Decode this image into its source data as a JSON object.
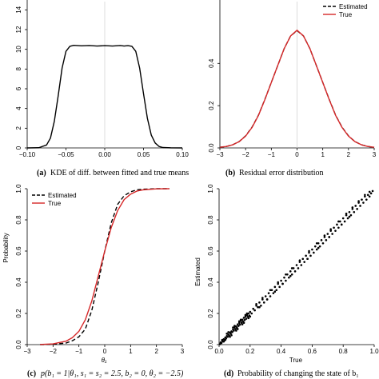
{
  "chart_data": [
    {
      "type": "line",
      "panel": "a",
      "caption_label": "(a)",
      "caption": "KDE of diff. between fitted and true means",
      "xlabel": "",
      "ylabel": "",
      "xlim": [
        -0.1,
        0.1
      ],
      "ylim": [
        0,
        15
      ],
      "xticks": [
        "−0.10",
        "−0.05",
        "0.00",
        "0.05",
        "0.10"
      ],
      "xtick_values": [
        -0.1,
        -0.05,
        0.0,
        0.05,
        0.1
      ],
      "yticks": [
        "0",
        "2",
        "4",
        "6",
        "8",
        "10",
        "12",
        "14"
      ],
      "ytick_values": [
        0,
        2,
        4,
        6,
        8,
        10,
        12,
        14
      ],
      "vline_x": 0.0,
      "series": [
        {
          "color": "#000000",
          "dash": "solid",
          "x": [
            -0.1,
            -0.085,
            -0.075,
            -0.07,
            -0.065,
            -0.06,
            -0.055,
            -0.05,
            -0.045,
            -0.04,
            -0.03,
            -0.02,
            -0.01,
            0.0,
            0.01,
            0.02,
            0.025,
            0.03,
            0.035,
            0.04,
            0.045,
            0.05,
            0.055,
            0.06,
            0.065,
            0.07,
            0.075,
            0.085,
            0.1
          ],
          "y": [
            0,
            0.02,
            0.3,
            1.0,
            2.7,
            5.3,
            8.1,
            9.8,
            10.3,
            10.4,
            10.35,
            10.38,
            10.33,
            10.37,
            10.33,
            10.38,
            10.33,
            10.37,
            10.3,
            9.8,
            8.1,
            5.5,
            3.0,
            1.3,
            0.5,
            0.15,
            0.04,
            0.01,
            0
          ]
        }
      ]
    },
    {
      "type": "line",
      "panel": "b",
      "caption_label": "(b)",
      "caption": "Residual error distribution",
      "xlabel": "",
      "ylabel": "",
      "xlim": [
        -3,
        3
      ],
      "ylim": [
        0,
        0.7
      ],
      "xticks": [
        "−3",
        "−2",
        "−1",
        "0",
        "1",
        "2",
        "3"
      ],
      "xtick_values": [
        -3,
        -2,
        -1,
        0,
        1,
        2,
        3
      ],
      "yticks": [
        "0.0",
        "0.2",
        "0.4"
      ],
      "ytick_values": [
        0.0,
        0.2,
        0.4
      ],
      "vline_x": 0,
      "legend": {
        "position": "top-right",
        "entries": [
          "Estimated",
          "True"
        ]
      },
      "series": [
        {
          "name": "Estimated",
          "color": "#000000",
          "dash": "dashed",
          "x": [
            -3,
            -2.75,
            -2.5,
            -2.25,
            -2,
            -1.75,
            -1.5,
            -1.25,
            -1,
            -0.75,
            -0.5,
            -0.25,
            0,
            0.25,
            0.5,
            0.75,
            1,
            1.25,
            1.5,
            1.75,
            2,
            2.25,
            2.5,
            2.75,
            3
          ],
          "y": [
            0.003,
            0.007,
            0.015,
            0.03,
            0.057,
            0.098,
            0.155,
            0.23,
            0.31,
            0.39,
            0.47,
            0.53,
            0.555,
            0.53,
            0.47,
            0.39,
            0.31,
            0.23,
            0.155,
            0.098,
            0.057,
            0.03,
            0.015,
            0.007,
            0.003
          ]
        },
        {
          "name": "True",
          "color": "#d62728",
          "dash": "solid",
          "x": [
            -3,
            -2.75,
            -2.5,
            -2.25,
            -2,
            -1.75,
            -1.5,
            -1.25,
            -1,
            -0.75,
            -0.5,
            -0.25,
            0,
            0.25,
            0.5,
            0.75,
            1,
            1.25,
            1.5,
            1.75,
            2,
            2.25,
            2.5,
            2.75,
            3
          ],
          "y": [
            0.003,
            0.007,
            0.015,
            0.03,
            0.056,
            0.097,
            0.154,
            0.229,
            0.31,
            0.39,
            0.47,
            0.53,
            0.557,
            0.53,
            0.47,
            0.39,
            0.31,
            0.229,
            0.154,
            0.097,
            0.056,
            0.03,
            0.015,
            0.007,
            0.003
          ]
        }
      ]
    },
    {
      "type": "line",
      "panel": "c",
      "caption_label": "(c)",
      "caption": "p(b₁ = 1|θ₁, s₁ = s₂ = 2.5, b₂ = 0, θ₂ = −2.5)",
      "xlabel": "θ₁",
      "ylabel": "Probability",
      "xlim": [
        -3,
        3
      ],
      "ylim": [
        0,
        1
      ],
      "xticks": [
        "−3",
        "−2",
        "−1",
        "0",
        "1",
        "2",
        "3"
      ],
      "xtick_values": [
        -3,
        -2,
        -1,
        0,
        1,
        2,
        3
      ],
      "yticks": [
        "0.0",
        "0.2",
        "0.4",
        "0.6",
        "0.8",
        "1.0"
      ],
      "ytick_values": [
        0.0,
        0.2,
        0.4,
        0.6,
        0.8,
        1.0
      ],
      "legend": {
        "position": "top-left",
        "entries": [
          "Estimated",
          "True"
        ]
      },
      "series": [
        {
          "name": "Estimated",
          "color": "#000000",
          "dash": "dashed",
          "x": [
            -2.5,
            -2.0,
            -1.5,
            -1.25,
            -1.0,
            -0.75,
            -0.5,
            -0.25,
            0.0,
            0.25,
            0.5,
            0.75,
            1.0,
            1.25,
            1.5,
            2.0,
            2.5
          ],
          "y": [
            0.0,
            0.002,
            0.01,
            0.025,
            0.05,
            0.1,
            0.22,
            0.4,
            0.6,
            0.78,
            0.9,
            0.955,
            0.98,
            0.993,
            0.997,
            1.0,
            1.0
          ]
        },
        {
          "name": "True",
          "color": "#d62728",
          "dash": "solid",
          "x": [
            -2.5,
            -2.0,
            -1.5,
            -1.25,
            -1.0,
            -0.75,
            -0.5,
            -0.25,
            0.0,
            0.25,
            0.5,
            0.75,
            1.0,
            1.25,
            1.5,
            2.0,
            2.5
          ],
          "y": [
            0.001,
            0.005,
            0.022,
            0.045,
            0.085,
            0.16,
            0.28,
            0.44,
            0.6,
            0.75,
            0.86,
            0.93,
            0.965,
            0.985,
            0.993,
            0.999,
            1.0
          ]
        }
      ]
    },
    {
      "type": "scatter",
      "panel": "d",
      "caption_label": "(d)",
      "caption": "Probability of changing the state of b₁",
      "xlabel": "True",
      "ylabel": "Estimated",
      "xlim": [
        0,
        1
      ],
      "ylim": [
        0,
        1
      ],
      "xticks": [
        "0.0",
        "0.2",
        "0.4",
        "0.6",
        "0.8",
        "1.0"
      ],
      "xtick_values": [
        0.0,
        0.2,
        0.4,
        0.6,
        0.8,
        1.0
      ],
      "yticks": [
        "0.0",
        "0.2",
        "0.4",
        "0.6",
        "0.8",
        "1.0"
      ],
      "ytick_values": [
        0.0,
        0.2,
        0.4,
        0.6,
        0.8,
        1.0
      ],
      "series": [
        {
          "color": "#000000",
          "x": [
            0.005,
            0.01,
            0.015,
            0.02,
            0.025,
            0.03,
            0.035,
            0.04,
            0.045,
            0.05,
            0.055,
            0.06,
            0.065,
            0.07,
            0.075,
            0.08,
            0.085,
            0.09,
            0.095,
            0.1,
            0.105,
            0.11,
            0.115,
            0.12,
            0.125,
            0.13,
            0.135,
            0.14,
            0.145,
            0.15,
            0.155,
            0.16,
            0.165,
            0.17,
            0.175,
            0.18,
            0.185,
            0.19,
            0.195,
            0.2,
            0.21,
            0.22,
            0.23,
            0.24,
            0.25,
            0.26,
            0.27,
            0.28,
            0.29,
            0.3,
            0.31,
            0.32,
            0.33,
            0.34,
            0.35,
            0.36,
            0.37,
            0.38,
            0.39,
            0.4,
            0.41,
            0.42,
            0.43,
            0.44,
            0.45,
            0.46,
            0.47,
            0.48,
            0.49,
            0.5,
            0.51,
            0.52,
            0.53,
            0.54,
            0.55,
            0.56,
            0.57,
            0.58,
            0.59,
            0.6,
            0.61,
            0.62,
            0.63,
            0.64,
            0.65,
            0.66,
            0.67,
            0.68,
            0.69,
            0.7,
            0.71,
            0.72,
            0.73,
            0.74,
            0.75,
            0.76,
            0.77,
            0.78,
            0.79,
            0.8,
            0.81,
            0.82,
            0.83,
            0.84,
            0.85,
            0.86,
            0.87,
            0.88,
            0.89,
            0.9,
            0.91,
            0.92,
            0.93,
            0.94,
            0.95,
            0.96,
            0.97,
            0.98,
            0.99,
            0.02,
            0.04,
            0.06,
            0.08,
            0.1,
            0.12,
            0.14,
            0.16,
            0.18,
            0.2,
            0.05,
            0.09,
            0.13,
            0.17,
            0.24,
            0.28,
            0.33,
            0.38,
            0.43,
            0.47,
            0.52,
            0.58,
            0.63,
            0.68,
            0.72,
            0.77,
            0.82,
            0.86,
            0.9,
            0.94,
            0.97,
            0.03,
            0.07,
            0.11,
            0.15,
            0.19,
            0.26,
            0.31,
            0.36,
            0.41,
            0.46,
            0.57,
            0.64,
            0.71,
            0.79,
            0.84
          ],
          "y": [
            0.003,
            0.014,
            0.01,
            0.025,
            0.02,
            0.035,
            0.028,
            0.045,
            0.04,
            0.055,
            0.05,
            0.065,
            0.058,
            0.078,
            0.07,
            0.085,
            0.08,
            0.098,
            0.09,
            0.11,
            0.1,
            0.118,
            0.108,
            0.13,
            0.12,
            0.14,
            0.128,
            0.152,
            0.14,
            0.16,
            0.148,
            0.172,
            0.158,
            0.18,
            0.166,
            0.19,
            0.178,
            0.2,
            0.186,
            0.21,
            0.2,
            0.23,
            0.22,
            0.25,
            0.24,
            0.27,
            0.25,
            0.29,
            0.27,
            0.31,
            0.29,
            0.33,
            0.31,
            0.35,
            0.33,
            0.37,
            0.35,
            0.39,
            0.37,
            0.41,
            0.39,
            0.43,
            0.41,
            0.45,
            0.43,
            0.47,
            0.45,
            0.49,
            0.47,
            0.51,
            0.49,
            0.53,
            0.51,
            0.55,
            0.53,
            0.57,
            0.55,
            0.59,
            0.57,
            0.61,
            0.59,
            0.63,
            0.61,
            0.65,
            0.63,
            0.67,
            0.65,
            0.69,
            0.67,
            0.71,
            0.69,
            0.73,
            0.71,
            0.75,
            0.73,
            0.77,
            0.75,
            0.79,
            0.77,
            0.81,
            0.79,
            0.83,
            0.81,
            0.85,
            0.83,
            0.87,
            0.85,
            0.89,
            0.87,
            0.91,
            0.89,
            0.93,
            0.91,
            0.95,
            0.93,
            0.96,
            0.95,
            0.97,
            0.985,
            0.03,
            0.03,
            0.08,
            0.06,
            0.12,
            0.1,
            0.16,
            0.14,
            0.2,
            0.18,
            0.07,
            0.11,
            0.15,
            0.19,
            0.26,
            0.3,
            0.35,
            0.4,
            0.45,
            0.49,
            0.54,
            0.6,
            0.65,
            0.7,
            0.74,
            0.79,
            0.84,
            0.88,
            0.92,
            0.96,
            0.98,
            0.02,
            0.05,
            0.09,
            0.13,
            0.17,
            0.24,
            0.29,
            0.34,
            0.39,
            0.44,
            0.55,
            0.62,
            0.69,
            0.77,
            0.82
          ]
        }
      ]
    }
  ]
}
